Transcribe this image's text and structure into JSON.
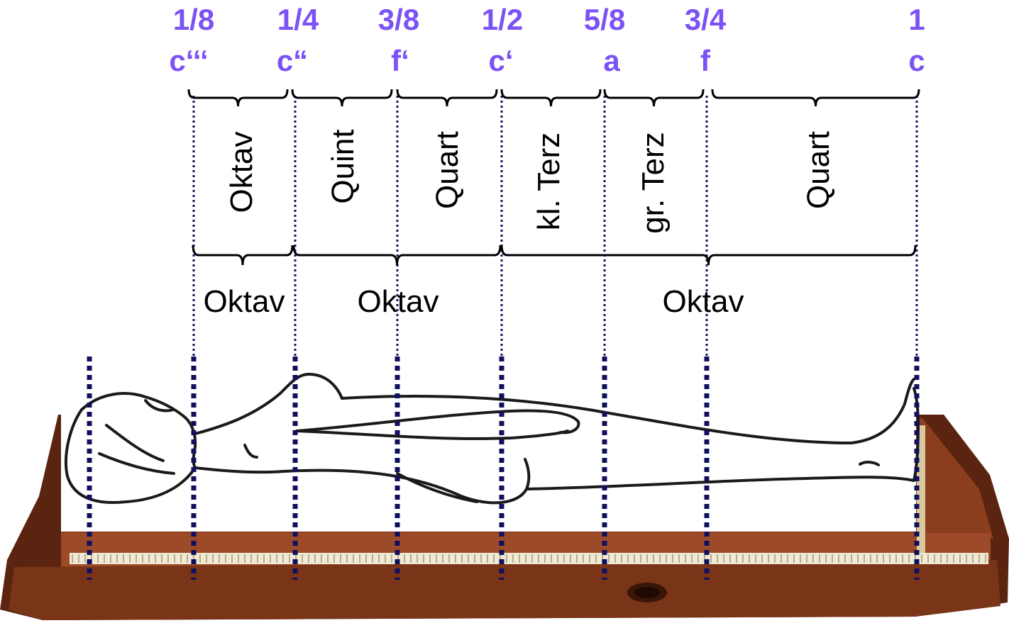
{
  "colors": {
    "label": "#7b52f5",
    "guide": "#10105e",
    "bracket": "#000000",
    "wood_dark": "#5a2410",
    "wood_mid": "#8b3e1e",
    "wood_light": "#b0603a",
    "bridge": "#efe9d6"
  },
  "positions": [
    {
      "fraction": "1/8",
      "note": "c‘‘‘"
    },
    {
      "fraction": "1/4",
      "note": "c“"
    },
    {
      "fraction": "3/8",
      "note": "f‘"
    },
    {
      "fraction": "1/2",
      "note": "c‘"
    },
    {
      "fraction": "5/8",
      "note": "a"
    },
    {
      "fraction": "3/4",
      "note": "f"
    },
    {
      "fraction": "1",
      "note": "c"
    }
  ],
  "intervals": [
    "Oktav",
    "Quint",
    "Quart",
    "kl. Terz",
    "gr. Terz",
    "Quart"
  ],
  "octaves": [
    "Oktav",
    "Oktav",
    "Oktav"
  ],
  "illustration": {
    "subject": "human figure lying on a monochord",
    "icon": "monochord-figure-illustration"
  }
}
